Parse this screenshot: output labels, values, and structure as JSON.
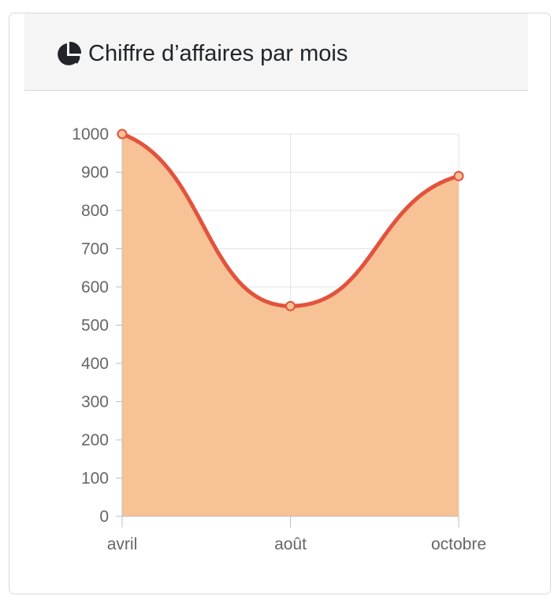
{
  "header": {
    "title": "Chiffre d’affaires par mois",
    "icon": "pie-chart-icon"
  },
  "chart_data": {
    "type": "area",
    "categories": [
      "avril",
      "août",
      "octobre"
    ],
    "values": [
      1000,
      550,
      890
    ],
    "title": "",
    "xlabel": "",
    "ylabel": "",
    "ylim": [
      0,
      1000
    ],
    "yticks": [
      0,
      100,
      200,
      300,
      400,
      500,
      600,
      700,
      800,
      900,
      1000
    ],
    "grid": true,
    "legend": "none",
    "line_color": "#e2533e",
    "fill_color": "#f7c295",
    "point_fill": "#f7c295"
  }
}
